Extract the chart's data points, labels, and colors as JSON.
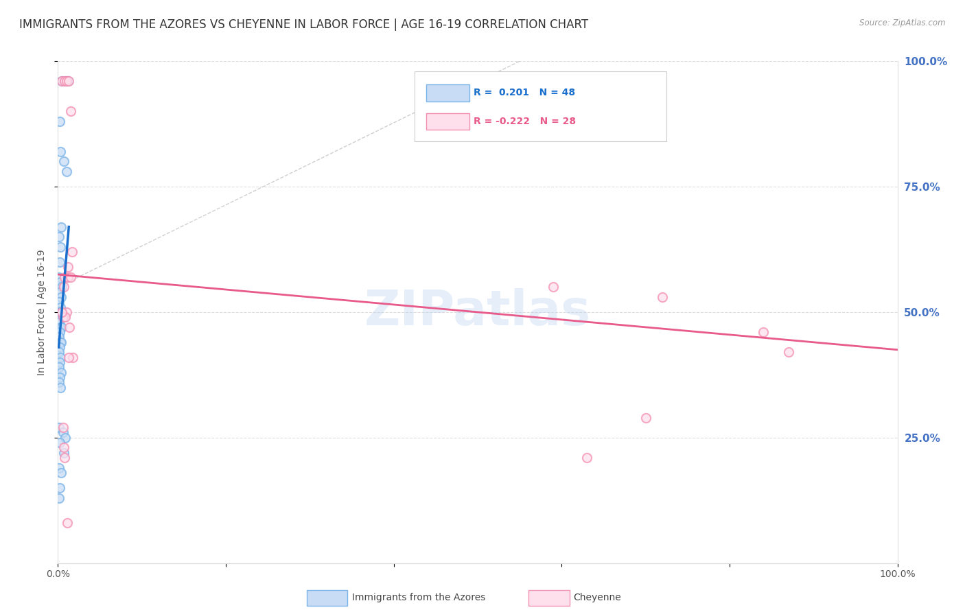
{
  "title": "IMMIGRANTS FROM THE AZORES VS CHEYENNE IN LABOR FORCE | AGE 16-19 CORRELATION CHART",
  "source": "Source: ZipAtlas.com",
  "ylabel": "In Labor Force | Age 16-19",
  "xmin": 0.0,
  "xmax": 1.0,
  "ymin": 0.0,
  "ymax": 1.0,
  "ytick_positions": [
    0.25,
    0.5,
    0.75,
    1.0
  ],
  "ytick_labels_right": [
    "25.0%",
    "50.0%",
    "75.0%",
    "100.0%"
  ],
  "watermark": "ZIPatlas",
  "blue_color": "#7ab3e8",
  "blue_fill": "#c8ddf5",
  "pink_color": "#f48fb1",
  "pink_fill": "#fde0ec",
  "blue_scatter": [
    [
      0.002,
      0.88
    ],
    [
      0.005,
      0.96
    ],
    [
      0.008,
      0.96
    ],
    [
      0.01,
      0.96
    ],
    [
      0.012,
      0.96
    ],
    [
      0.003,
      0.82
    ],
    [
      0.007,
      0.8
    ],
    [
      0.01,
      0.78
    ],
    [
      0.004,
      0.67
    ],
    [
      0.001,
      0.65
    ],
    [
      0.003,
      0.63
    ],
    [
      0.002,
      0.6
    ],
    [
      0.001,
      0.57
    ],
    [
      0.003,
      0.56
    ],
    [
      0.005,
      0.55
    ],
    [
      0.002,
      0.54
    ],
    [
      0.004,
      0.53
    ],
    [
      0.001,
      0.52
    ],
    [
      0.003,
      0.51
    ],
    [
      0.002,
      0.5
    ],
    [
      0.001,
      0.5
    ],
    [
      0.004,
      0.5
    ],
    [
      0.006,
      0.49
    ],
    [
      0.001,
      0.48
    ],
    [
      0.003,
      0.47
    ],
    [
      0.005,
      0.47
    ],
    [
      0.002,
      0.46
    ],
    [
      0.001,
      0.45
    ],
    [
      0.003,
      0.44
    ],
    [
      0.004,
      0.44
    ],
    [
      0.002,
      0.43
    ],
    [
      0.001,
      0.42
    ],
    [
      0.003,
      0.41
    ],
    [
      0.002,
      0.4
    ],
    [
      0.001,
      0.39
    ],
    [
      0.004,
      0.38
    ],
    [
      0.002,
      0.37
    ],
    [
      0.001,
      0.36
    ],
    [
      0.003,
      0.35
    ],
    [
      0.001,
      0.27
    ],
    [
      0.006,
      0.26
    ],
    [
      0.009,
      0.25
    ],
    [
      0.002,
      0.24
    ],
    [
      0.007,
      0.22
    ],
    [
      0.001,
      0.19
    ],
    [
      0.004,
      0.18
    ],
    [
      0.002,
      0.15
    ],
    [
      0.001,
      0.13
    ]
  ],
  "pink_scatter": [
    [
      0.005,
      0.96
    ],
    [
      0.008,
      0.96
    ],
    [
      0.01,
      0.96
    ],
    [
      0.013,
      0.96
    ],
    [
      0.015,
      0.9
    ],
    [
      0.017,
      0.62
    ],
    [
      0.012,
      0.59
    ],
    [
      0.008,
      0.57
    ],
    [
      0.012,
      0.57
    ],
    [
      0.015,
      0.57
    ],
    [
      0.007,
      0.55
    ],
    [
      0.01,
      0.5
    ],
    [
      0.006,
      0.49
    ],
    [
      0.009,
      0.49
    ],
    [
      0.014,
      0.47
    ],
    [
      0.005,
      0.5
    ],
    [
      0.018,
      0.41
    ],
    [
      0.013,
      0.41
    ],
    [
      0.006,
      0.27
    ],
    [
      0.007,
      0.23
    ],
    [
      0.008,
      0.21
    ],
    [
      0.011,
      0.08
    ],
    [
      0.59,
      0.55
    ],
    [
      0.7,
      0.29
    ],
    [
      0.63,
      0.21
    ],
    [
      0.72,
      0.53
    ],
    [
      0.84,
      0.46
    ],
    [
      0.87,
      0.42
    ]
  ],
  "blue_line_x": [
    0.001,
    0.013
  ],
  "blue_line_y": [
    0.43,
    0.67
  ],
  "pink_line_x": [
    0.0,
    1.0
  ],
  "pink_line_y": [
    0.575,
    0.425
  ],
  "diag_line_x": [
    0.0,
    0.55
  ],
  "diag_line_y": [
    0.55,
    1.0
  ],
  "title_fontsize": 12,
  "axis_fontsize": 10,
  "tick_fontsize": 10,
  "right_tick_color": "#4472c4",
  "legend_r1": "R =  0.201   N = 48",
  "legend_r2": "R = -0.222   N = 28",
  "legend_c1": "#1a6fcc",
  "legend_c2": "#e85a8a",
  "bottom_label1": "Immigrants from the Azores",
  "bottom_label2": "Cheyenne"
}
